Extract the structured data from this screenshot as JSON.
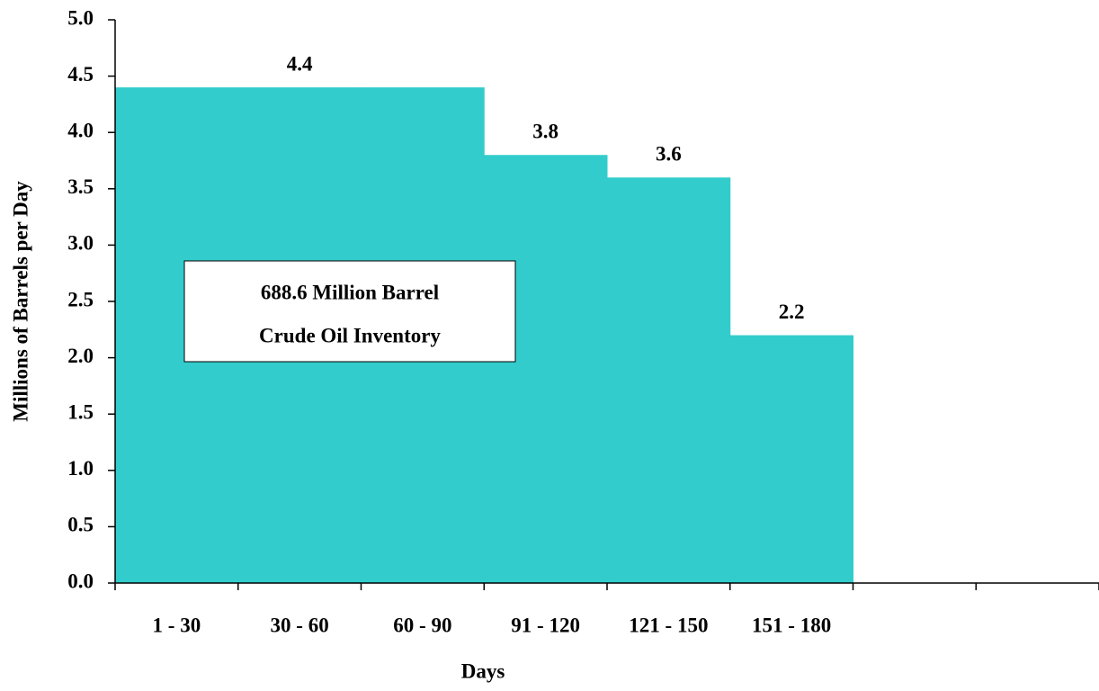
{
  "chart_data": {
    "type": "bar",
    "x_label": "Days",
    "y_label": "Millions of Barrels per Day",
    "annotation": [
      "688.6 Million Barrel",
      "Crude Oil Inventory"
    ],
    "categories": [
      "1 - 30",
      "30 - 60",
      "60 - 90",
      "91 - 120",
      "121 - 150",
      "151 - 180",
      null,
      null
    ],
    "values": [
      4.4,
      4.4,
      4.4,
      3.8,
      3.6,
      2.2,
      null,
      null
    ],
    "value_labels": [
      null,
      "4.4",
      null,
      "3.8",
      "3.6",
      "2.2",
      null,
      null
    ],
    "color": "#33cccc",
    "ylim": [
      0,
      5
    ],
    "yticks": [
      {
        "value": 0,
        "label": "0.0"
      },
      0.5,
      {
        "value": 1,
        "label": "1.0"
      },
      1.5,
      {
        "value": 2,
        "label": "2.0"
      },
      2.5,
      {
        "value": 3,
        "label": "3.0"
      },
      3.5,
      {
        "value": 4,
        "label": "4.0"
      },
      4.5,
      {
        "value": 5,
        "label": "5.0"
      }
    ],
    "grid": false
  }
}
